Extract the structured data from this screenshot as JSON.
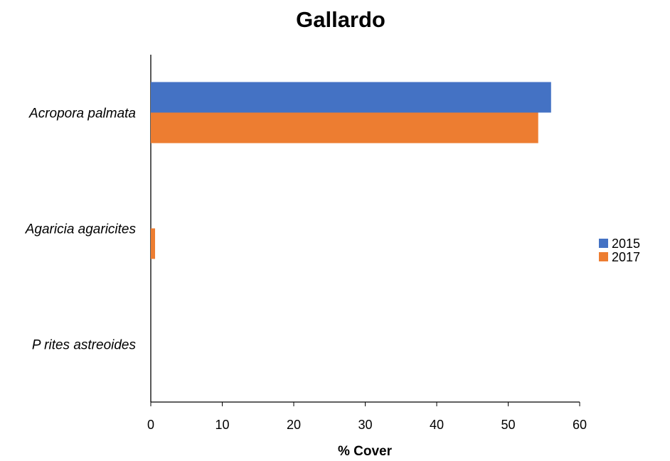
{
  "chart_data": {
    "type": "bar",
    "orientation": "horizontal",
    "title": "Gallardo",
    "xlabel": "% Cover",
    "ylabel": "",
    "categories": [
      "Acropora palmata",
      "Agaricia agaricites",
      "P rites astreoides"
    ],
    "series": [
      {
        "name": "2015",
        "color": "#4472C4",
        "values": [
          56,
          0,
          0
        ]
      },
      {
        "name": "2017",
        "color": "#ED7D31",
        "values": [
          54.2,
          0.6,
          0
        ]
      }
    ],
    "xlim": [
      0,
      60
    ],
    "xticks": [
      "0",
      "10",
      "20",
      "30",
      "40",
      "50",
      "60"
    ],
    "grid": false,
    "legend_position": "right"
  }
}
